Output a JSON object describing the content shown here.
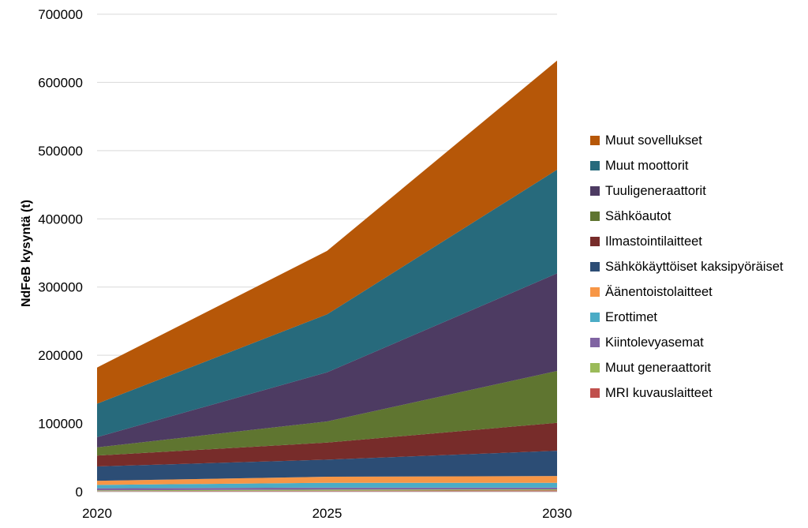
{
  "chart_data": {
    "type": "area",
    "stacked": true,
    "title": "",
    "xlabel": "",
    "ylabel": "NdFeB kysyntä (t)",
    "x": [
      "2020",
      "2025",
      "2030"
    ],
    "ylim": [
      0,
      700000
    ],
    "yticks": [
      "0",
      "100000",
      "200000",
      "300000",
      "400000",
      "500000",
      "600000",
      "700000"
    ],
    "ytick_values": [
      0,
      100000,
      200000,
      300000,
      400000,
      500000,
      600000,
      700000
    ],
    "grid": true,
    "legend_position": "right",
    "series": [
      {
        "name": "MRI kuvauslaitteet",
        "color": "#c0504d",
        "values": [
          1000,
          1500,
          2000
        ]
      },
      {
        "name": "Muut generaattorit",
        "color": "#9bbb59",
        "values": [
          1000,
          1500,
          1500
        ]
      },
      {
        "name": "Kiintolevyasemat",
        "color": "#8064a2",
        "values": [
          3000,
          3000,
          2500
        ]
      },
      {
        "name": "Erottimet",
        "color": "#4bacc6",
        "values": [
          5000,
          7000,
          7000
        ]
      },
      {
        "name": "Äänentoistolaitteet",
        "color": "#f79646",
        "values": [
          6000,
          9000,
          10000
        ]
      },
      {
        "name": "Sähkökäyttöiset kaksipyöräiset",
        "color": "#2c4d75",
        "values": [
          21000,
          25000,
          37000
        ]
      },
      {
        "name": "Ilmastointilaitteet",
        "color": "#772c2a",
        "values": [
          16000,
          25000,
          41000
        ]
      },
      {
        "name": "Sähköautot",
        "color": "#5f7530",
        "values": [
          12000,
          31000,
          76000
        ]
      },
      {
        "name": "Tuuligeneraattorit",
        "color": "#4d3b62",
        "values": [
          15000,
          72000,
          143000
        ]
      },
      {
        "name": "Muut moottorit",
        "color": "#276a7c",
        "values": [
          49000,
          85000,
          152000
        ]
      },
      {
        "name": "Muut sovellukset",
        "color": "#b65708",
        "values": [
          53000,
          93000,
          160000
        ]
      }
    ]
  }
}
